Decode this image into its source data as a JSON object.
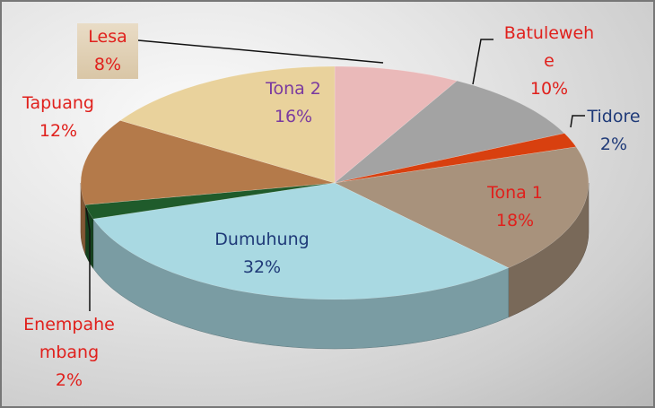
{
  "chart_data": {
    "type": "pie3d",
    "categories": [
      "Lesa",
      "Batulewehe",
      "Tidore",
      "Tona 1",
      "Dumuhung",
      "Enempahembang",
      "Tapuang",
      "Tona 2"
    ],
    "values": [
      8,
      10,
      2,
      18,
      32,
      2,
      12,
      16
    ],
    "value_labels": [
      "8%",
      "10%",
      "2%",
      "18%",
      "32%",
      "2%",
      "12%",
      "16%"
    ],
    "colors": [
      "#eab9b9",
      "#a3a3a3",
      "#d8400f",
      "#a8927c",
      "#a9d9e2",
      "#1f5b2b",
      "#b47a4a",
      "#e9d29c"
    ],
    "label_colors": [
      "#e0201c",
      "#e0201c",
      "#1f3a78",
      "#e0201c",
      "#1f3a78",
      "#e0201c",
      "#e0201c",
      "#7a3aa0"
    ]
  }
}
